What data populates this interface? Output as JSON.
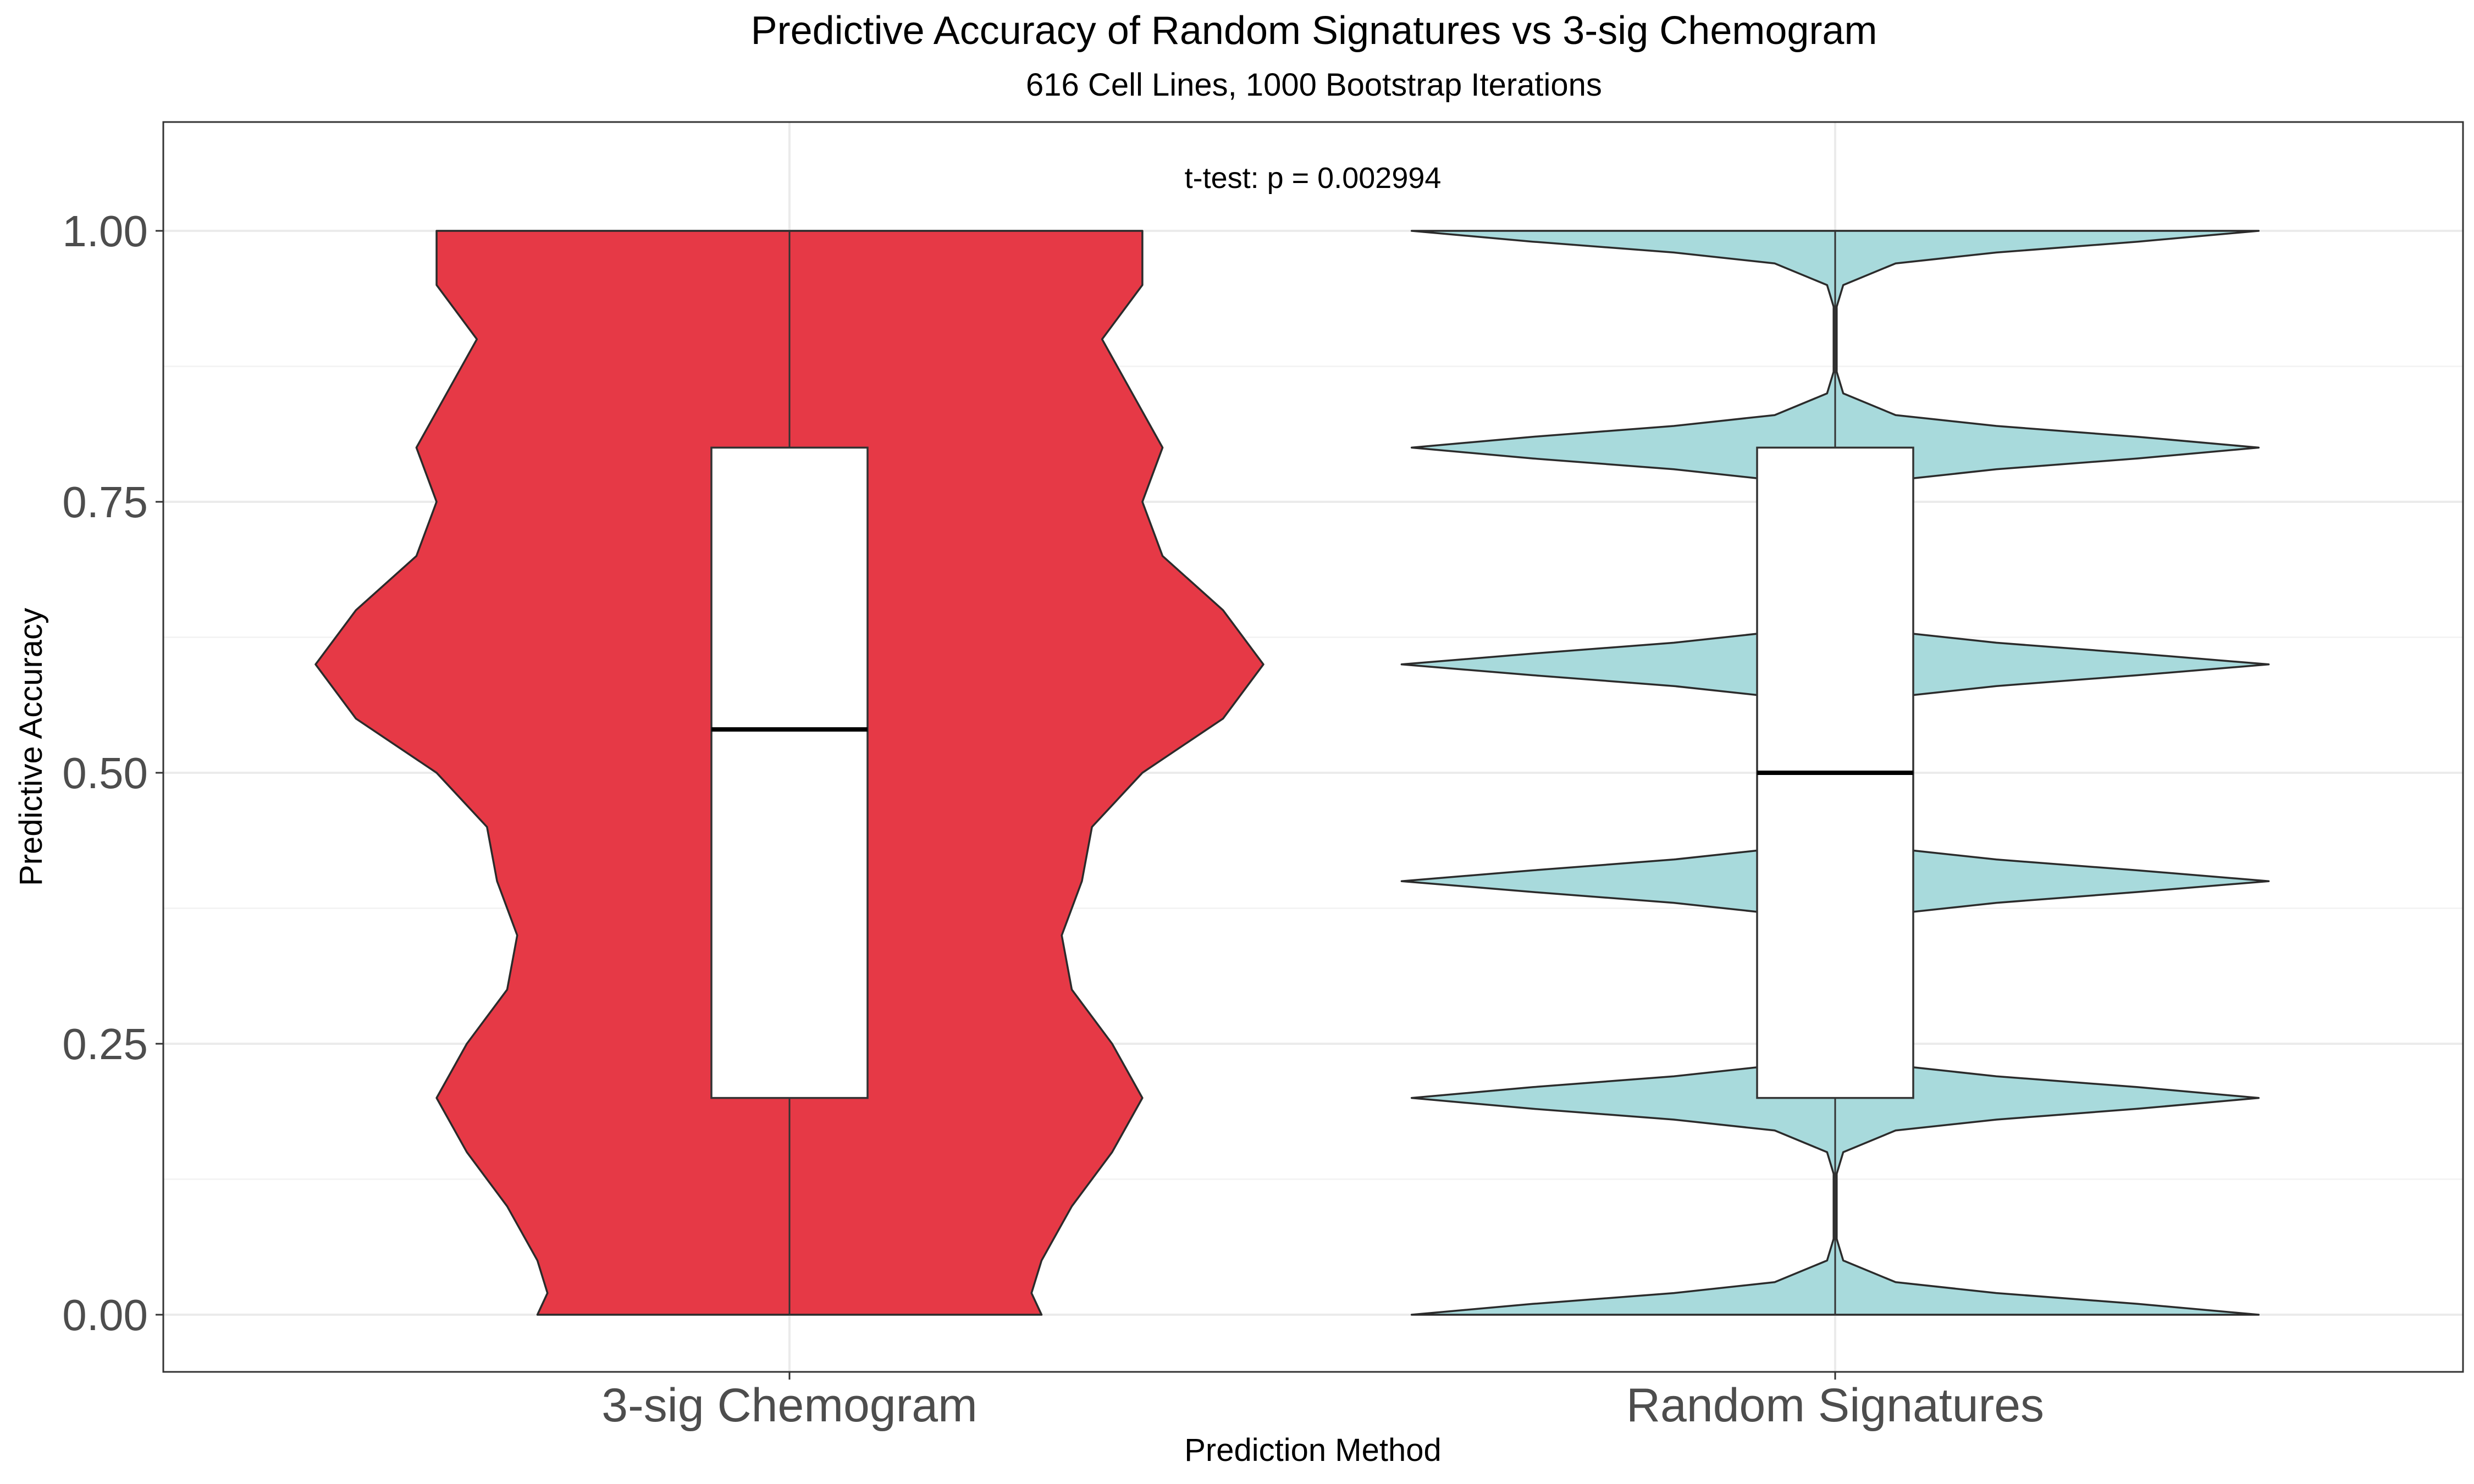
{
  "chart_data": {
    "type": "violin",
    "title": "Predictive Accuracy of Random Signatures vs 3-sig Chemogram",
    "subtitle": "616 Cell Lines, 1000 Bootstrap Iterations",
    "xlabel": "Prediction Method",
    "ylabel": "Predictive Accuracy",
    "annotation": "t-test: p = 0.002994",
    "ylim": [
      -0.05,
      1.1
    ],
    "yticks": [
      0,
      0.25,
      0.5,
      0.75,
      1
    ],
    "ytick_labels": [
      "0.00",
      "0.25",
      "0.50",
      "0.75",
      "1.00"
    ],
    "grid": true,
    "categories": [
      "3-sig Chemogram",
      "Random Signatures"
    ],
    "series": [
      {
        "name": "3-sig Chemogram",
        "color": "#e63946",
        "box": {
          "q1": 0.2,
          "median": 0.54,
          "q3": 0.8,
          "min": 0.0,
          "max": 1.0
        },
        "density": [
          [
            0.0,
            0.25
          ],
          [
            0.02,
            0.24
          ],
          [
            0.05,
            0.25
          ],
          [
            0.1,
            0.28
          ],
          [
            0.15,
            0.32
          ],
          [
            0.2,
            0.35
          ],
          [
            0.25,
            0.32
          ],
          [
            0.3,
            0.28
          ],
          [
            0.35,
            0.27
          ],
          [
            0.4,
            0.29
          ],
          [
            0.45,
            0.3
          ],
          [
            0.5,
            0.35
          ],
          [
            0.55,
            0.43
          ],
          [
            0.6,
            0.47
          ],
          [
            0.65,
            0.43
          ],
          [
            0.7,
            0.37
          ],
          [
            0.75,
            0.35
          ],
          [
            0.8,
            0.37
          ],
          [
            0.85,
            0.34
          ],
          [
            0.9,
            0.31
          ],
          [
            0.95,
            0.35
          ],
          [
            0.98,
            0.35
          ],
          [
            1.0,
            0.35
          ]
        ]
      },
      {
        "name": "Random Signatures",
        "color": "#a8dadc",
        "box": {
          "q1": 0.2,
          "median": 0.5,
          "q3": 0.8,
          "min": 0.0,
          "max": 1.0
        },
        "density": [
          [
            0.0,
            0.42
          ],
          [
            0.01,
            0.3
          ],
          [
            0.02,
            0.16
          ],
          [
            0.03,
            0.06
          ],
          [
            0.05,
            0.008
          ],
          [
            0.07,
            0.0015
          ],
          [
            0.13,
            0.0015
          ],
          [
            0.15,
            0.008
          ],
          [
            0.17,
            0.06
          ],
          [
            0.18,
            0.16
          ],
          [
            0.19,
            0.3
          ],
          [
            0.2,
            0.42
          ],
          [
            0.21,
            0.3
          ],
          [
            0.22,
            0.16
          ],
          [
            0.23,
            0.06
          ],
          [
            0.25,
            0.008
          ],
          [
            0.27,
            0.0015
          ],
          [
            0.33,
            0.0015
          ],
          [
            0.35,
            0.008
          ],
          [
            0.37,
            0.06
          ],
          [
            0.38,
            0.16
          ],
          [
            0.39,
            0.3
          ],
          [
            0.4,
            0.43
          ],
          [
            0.41,
            0.3
          ],
          [
            0.42,
            0.16
          ],
          [
            0.43,
            0.06
          ],
          [
            0.45,
            0.008
          ],
          [
            0.47,
            0.0015
          ],
          [
            0.53,
            0.0015
          ],
          [
            0.55,
            0.008
          ],
          [
            0.57,
            0.06
          ],
          [
            0.58,
            0.16
          ],
          [
            0.59,
            0.3
          ],
          [
            0.6,
            0.43
          ],
          [
            0.61,
            0.3
          ],
          [
            0.62,
            0.16
          ],
          [
            0.63,
            0.06
          ],
          [
            0.65,
            0.008
          ],
          [
            0.67,
            0.0015
          ],
          [
            0.73,
            0.0015
          ],
          [
            0.75,
            0.008
          ],
          [
            0.77,
            0.06
          ],
          [
            0.78,
            0.16
          ],
          [
            0.79,
            0.3
          ],
          [
            0.8,
            0.42
          ],
          [
            0.81,
            0.3
          ],
          [
            0.82,
            0.16
          ],
          [
            0.83,
            0.06
          ],
          [
            0.85,
            0.008
          ],
          [
            0.87,
            0.0015
          ],
          [
            0.93,
            0.0015
          ],
          [
            0.95,
            0.008
          ],
          [
            0.97,
            0.06
          ],
          [
            0.98,
            0.16
          ],
          [
            0.99,
            0.3
          ],
          [
            1.0,
            0.42
          ]
        ]
      }
    ]
  }
}
